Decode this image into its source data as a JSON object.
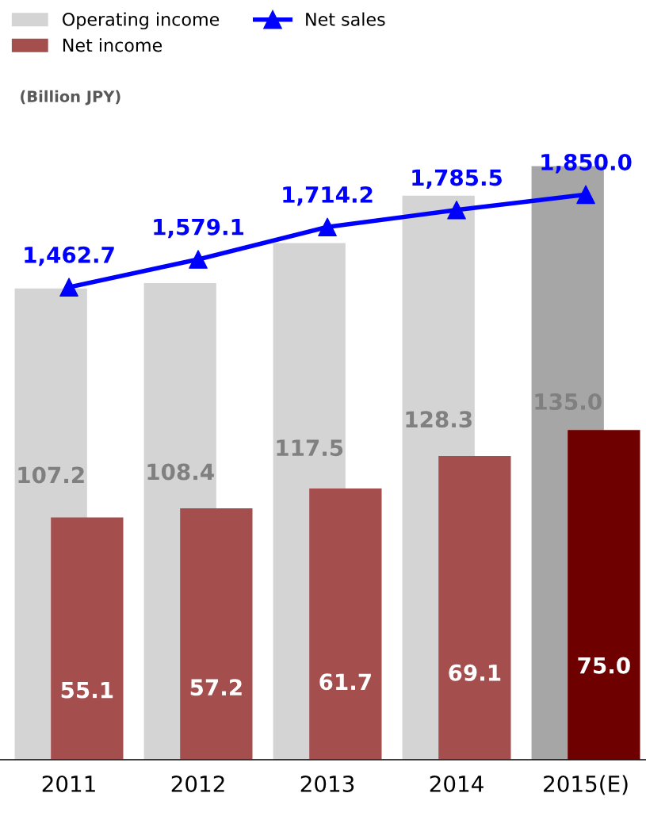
{
  "chart_data": {
    "type": "bar",
    "categories": [
      "2011",
      "2012",
      "2013",
      "2014",
      "2015(E)"
    ],
    "series": [
      {
        "name": "Operating income",
        "colors": [
          "#d4d4d4",
          "#d4d4d4",
          "#d4d4d4",
          "#d4d4d4",
          "#a6a6a6"
        ],
        "color": "#d4d4d4",
        "values": [
          107.2,
          108.4,
          117.5,
          128.3,
          135.0
        ],
        "value_labels": [
          "107.2",
          "108.4",
          "117.5",
          "128.3",
          "135.0"
        ]
      },
      {
        "name": "Net income",
        "colors": [
          "#a44e4e",
          "#a44e4e",
          "#a44e4e",
          "#a44e4e",
          "#6e0000"
        ],
        "color": "#a44e4e",
        "values": [
          55.1,
          57.2,
          61.7,
          69.1,
          75.0
        ],
        "value_labels": [
          "55.1",
          "57.2",
          "61.7",
          "69.1",
          "75.0"
        ]
      },
      {
        "name": "Net sales",
        "type": "line",
        "axis": "y2",
        "color": "#0000ff",
        "values": [
          1462.7,
          1579.1,
          1714.2,
          1785.5,
          1850.0
        ],
        "value_labels": [
          "1,462.7",
          "1,579.1",
          "1,714.2",
          "1,785.5",
          "1,850.0"
        ]
      }
    ],
    "tick_labels": "x",
    "marker": "triangle",
    "line_style": "solid",
    "legend": "top left",
    "grid": false,
    "annotations": [
      "(Billion JPY)"
    ]
  }
}
